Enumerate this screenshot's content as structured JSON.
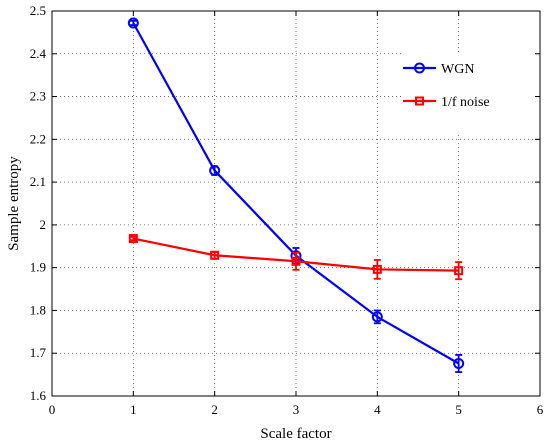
{
  "chart_data": {
    "type": "line",
    "xlabel": "Scale factor",
    "ylabel": "Sample entropy",
    "xlim": [
      0,
      6
    ],
    "ylim": [
      1.6,
      2.5
    ],
    "xticks": [
      0,
      1,
      2,
      3,
      4,
      5,
      6
    ],
    "yticks": [
      1.6,
      1.7,
      1.8,
      1.9,
      2.0,
      2.1,
      2.2,
      2.3,
      2.4,
      2.5
    ],
    "ytick_labels": [
      "1.6",
      "1.7",
      "1.8",
      "1.9",
      "2",
      "2.1",
      "2.2",
      "2.3",
      "2.4",
      "2.5"
    ],
    "grid": true,
    "grid_style": "dotted",
    "legend_position": "top-right",
    "x": [
      1,
      2,
      3,
      4,
      5
    ],
    "series": [
      {
        "name": "WGN",
        "color": "#0000ff",
        "marker": "circle",
        "values": [
          2.472,
          2.127,
          1.928,
          1.785,
          1.676
        ],
        "errors": [
          0.005,
          0.01,
          0.018,
          0.015,
          0.02
        ]
      },
      {
        "name": "1/f noise",
        "color": "#ff0000",
        "marker": "square",
        "values": [
          1.968,
          1.929,
          1.915,
          1.896,
          1.893
        ],
        "errors": [
          0.004,
          0.008,
          0.02,
          0.022,
          0.02
        ]
      }
    ]
  }
}
